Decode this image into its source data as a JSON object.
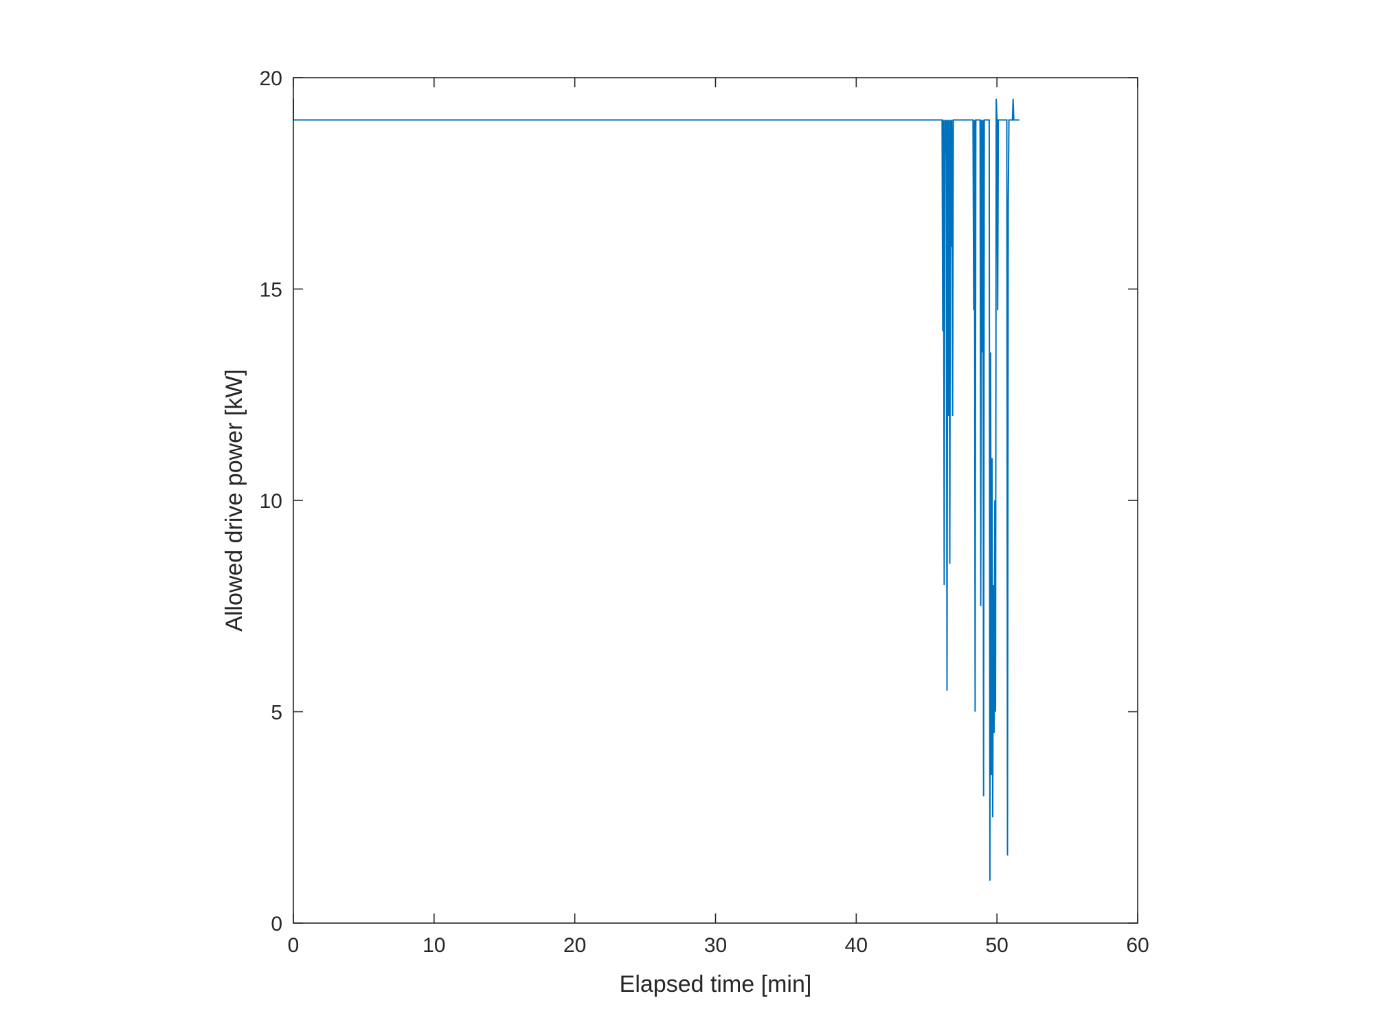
{
  "chart_data": {
    "type": "line",
    "title": "",
    "xlabel": "Elapsed time [min]",
    "ylabel": "Allowed drive power [kW]",
    "xlim": [
      0,
      60
    ],
    "ylim": [
      0,
      20
    ],
    "xticks": [
      0,
      10,
      20,
      30,
      40,
      50,
      60
    ],
    "yticks": [
      0,
      5,
      10,
      15,
      20
    ],
    "grid": false,
    "legend": "none",
    "box": true,
    "series": [
      {
        "color": "#0072BD",
        "x": [
          0,
          0,
          0.02,
          46.1,
          46.15,
          46.2,
          46.25,
          46.3,
          46.35,
          46.4,
          46.45,
          46.5,
          46.55,
          46.6,
          46.65,
          46.7,
          46.75,
          46.8,
          46.85,
          46.9,
          46.95,
          47.0,
          47.05,
          47.1,
          47.15,
          47.2,
          47.3,
          48.3,
          48.35,
          48.4,
          48.45,
          48.5,
          48.55,
          48.6,
          48.7,
          48.8,
          48.85,
          48.9,
          48.95,
          49.0,
          49.05,
          49.1,
          49.15,
          49.2,
          49.3,
          49.45,
          49.5,
          49.55,
          49.6,
          49.65,
          49.7,
          49.75,
          49.8,
          49.85,
          49.9,
          49.95,
          50.0,
          50.05,
          50.1,
          50.15,
          50.2,
          50.25,
          50.3,
          50.35,
          50.4,
          50.5,
          50.6,
          50.7,
          50.75,
          50.8,
          50.85,
          50.9,
          51.0,
          51.1,
          51.15,
          51.2,
          51.25,
          51.3,
          51.5,
          51.6
        ],
        "values": [
          19.5,
          19.0,
          19.0,
          19.0,
          14.0,
          19.0,
          8.0,
          19.0,
          18.2,
          19.0,
          5.5,
          19.0,
          12.0,
          19.0,
          8.5,
          19.0,
          16.0,
          19.0,
          12.0,
          19.0,
          19.0,
          19.0,
          19.0,
          19.0,
          19.0,
          19.0,
          19.0,
          19.0,
          14.5,
          19.0,
          5.0,
          19.0,
          19.0,
          19.0,
          19.0,
          19.0,
          7.5,
          19.0,
          13.5,
          19.0,
          3.0,
          19.0,
          19.0,
          19.0,
          19.0,
          19.0,
          1.0,
          13.5,
          3.5,
          11.0,
          2.5,
          8.0,
          4.5,
          10.0,
          5.0,
          19.5,
          19.0,
          14.5,
          19.0,
          19.0,
          19.0,
          19.0,
          19.0,
          19.0,
          19.0,
          19.0,
          19.0,
          19.0,
          1.6,
          17.0,
          19.0,
          19.0,
          19.0,
          19.0,
          19.5,
          19.0,
          19.0,
          19.0,
          19.0,
          19.0
        ]
      }
    ]
  }
}
